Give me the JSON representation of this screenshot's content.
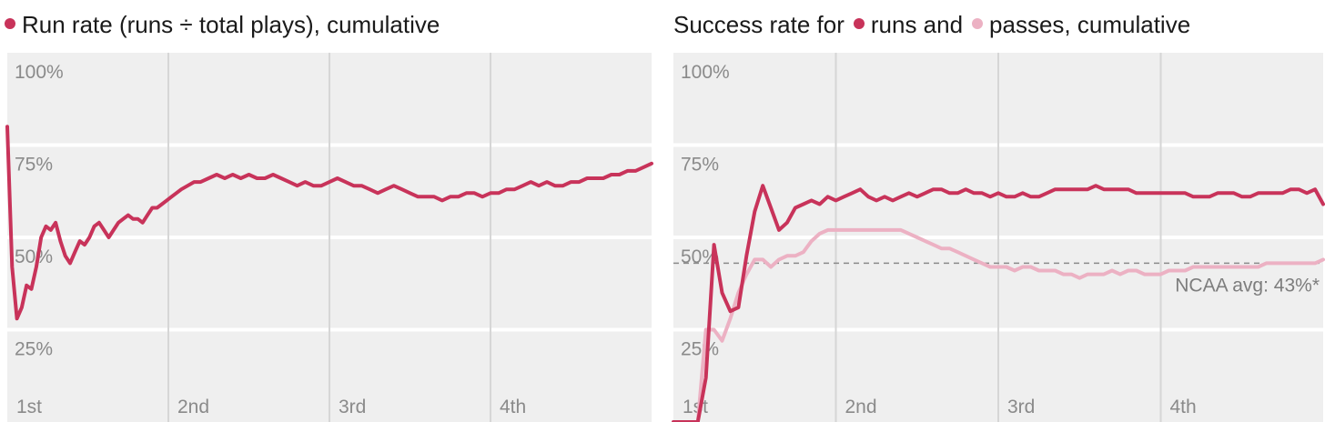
{
  "chart_data": [
    {
      "type": "line",
      "title": "Run rate (runs ÷ total plays), cumulative",
      "xlabel": "",
      "ylabel": "",
      "x_ticks": [
        "1st",
        "2nd",
        "3rd",
        "4th"
      ],
      "y_ticks": [
        "100%",
        "75%",
        "50%",
        "25%"
      ],
      "ylim": [
        0,
        100
      ],
      "xlim": [
        0,
        4
      ],
      "grid": true,
      "legend": "inline-title",
      "series": [
        {
          "name": "Run rate",
          "color": "#c8335a",
          "x": [
            0.0,
            0.03,
            0.06,
            0.09,
            0.12,
            0.15,
            0.18,
            0.21,
            0.24,
            0.27,
            0.3,
            0.33,
            0.36,
            0.39,
            0.42,
            0.45,
            0.48,
            0.51,
            0.54,
            0.57,
            0.6,
            0.63,
            0.66,
            0.69,
            0.72,
            0.75,
            0.78,
            0.81,
            0.84,
            0.87,
            0.9,
            0.93,
            0.96,
            0.99,
            1.02,
            1.05,
            1.08,
            1.12,
            1.16,
            1.2,
            1.25,
            1.3,
            1.35,
            1.4,
            1.45,
            1.5,
            1.55,
            1.6,
            1.65,
            1.7,
            1.75,
            1.8,
            1.85,
            1.9,
            1.95,
            2.0,
            2.05,
            2.1,
            2.15,
            2.2,
            2.25,
            2.3,
            2.35,
            2.4,
            2.45,
            2.5,
            2.55,
            2.6,
            2.65,
            2.7,
            2.75,
            2.8,
            2.85,
            2.9,
            2.95,
            3.0,
            3.05,
            3.1,
            3.15,
            3.2,
            3.25,
            3.3,
            3.35,
            3.4,
            3.45,
            3.5,
            3.55,
            3.6,
            3.65,
            3.7,
            3.75,
            3.8,
            3.85,
            3.9,
            3.95,
            4.0
          ],
          "y": [
            80,
            42,
            28,
            31,
            37,
            36,
            42,
            50,
            53,
            52,
            54,
            49,
            45,
            43,
            46,
            49,
            48,
            50,
            53,
            54,
            52,
            50,
            52,
            54,
            55,
            56,
            55,
            55,
            54,
            56,
            58,
            58,
            59,
            60,
            61,
            62,
            63,
            64,
            65,
            65,
            66,
            67,
            66,
            67,
            66,
            67,
            66,
            66,
            67,
            66,
            65,
            64,
            65,
            64,
            64,
            65,
            66,
            65,
            64,
            64,
            63,
            62,
            63,
            64,
            63,
            62,
            61,
            61,
            61,
            60,
            61,
            61,
            62,
            62,
            61,
            62,
            62,
            63,
            63,
            64,
            65,
            64,
            65,
            64,
            64,
            65,
            65,
            66,
            66,
            66,
            67,
            67,
            68,
            68,
            69,
            70
          ]
        }
      ]
    },
    {
      "type": "line",
      "title": "Success rate for ● runs and ● passes, cumulative",
      "title_parts": [
        "Success rate for",
        "runs and",
        "passes, cumulative"
      ],
      "xlabel": "",
      "ylabel": "",
      "x_ticks": [
        "1st",
        "2nd",
        "3rd",
        "4th"
      ],
      "y_ticks": [
        "100%",
        "75%",
        "50%",
        "25%"
      ],
      "ylim": [
        0,
        100
      ],
      "xlim": [
        0,
        4
      ],
      "grid": true,
      "legend": "inline-title",
      "annotations": [
        "NCAA avg: 43%*"
      ],
      "reference_line": 43,
      "series": [
        {
          "name": "runs",
          "color": "#c8335a",
          "x": [
            0.0,
            0.15,
            0.2,
            0.25,
            0.3,
            0.35,
            0.4,
            0.45,
            0.5,
            0.55,
            0.6,
            0.65,
            0.7,
            0.75,
            0.8,
            0.85,
            0.9,
            0.95,
            1.0,
            1.05,
            1.1,
            1.15,
            1.2,
            1.25,
            1.3,
            1.35,
            1.4,
            1.45,
            1.5,
            1.55,
            1.6,
            1.65,
            1.7,
            1.75,
            1.8,
            1.85,
            1.9,
            1.95,
            2.0,
            2.05,
            2.1,
            2.15,
            2.2,
            2.25,
            2.3,
            2.35,
            2.4,
            2.45,
            2.5,
            2.55,
            2.6,
            2.65,
            2.7,
            2.75,
            2.8,
            2.85,
            2.9,
            2.95,
            3.0,
            3.05,
            3.1,
            3.15,
            3.2,
            3.25,
            3.3,
            3.35,
            3.4,
            3.45,
            3.5,
            3.55,
            3.6,
            3.65,
            3.7,
            3.75,
            3.8,
            3.85,
            3.9,
            3.95,
            4.0
          ],
          "y": [
            0,
            0,
            12,
            48,
            35,
            30,
            31,
            45,
            57,
            64,
            58,
            52,
            54,
            58,
            59,
            60,
            59,
            61,
            60,
            61,
            62,
            63,
            61,
            60,
            61,
            60,
            61,
            62,
            61,
            62,
            63,
            63,
            62,
            62,
            63,
            62,
            62,
            61,
            62,
            61,
            61,
            62,
            61,
            61,
            62,
            63,
            63,
            63,
            63,
            63,
            64,
            63,
            63,
            63,
            63,
            62,
            62,
            62,
            62,
            62,
            62,
            62,
            61,
            61,
            61,
            62,
            62,
            62,
            61,
            61,
            62,
            62,
            62,
            62,
            63,
            63,
            62,
            63,
            59
          ]
        },
        {
          "name": "passes",
          "color": "#ecb1c3",
          "x": [
            0.0,
            0.15,
            0.2,
            0.25,
            0.3,
            0.35,
            0.4,
            0.45,
            0.5,
            0.55,
            0.6,
            0.65,
            0.7,
            0.75,
            0.8,
            0.85,
            0.9,
            0.95,
            1.0,
            1.05,
            1.1,
            1.15,
            1.2,
            1.25,
            1.3,
            1.35,
            1.4,
            1.45,
            1.5,
            1.55,
            1.6,
            1.65,
            1.7,
            1.75,
            1.8,
            1.85,
            1.9,
            1.95,
            2.0,
            2.05,
            2.1,
            2.15,
            2.2,
            2.25,
            2.3,
            2.35,
            2.4,
            2.45,
            2.5,
            2.55,
            2.6,
            2.65,
            2.7,
            2.75,
            2.8,
            2.85,
            2.9,
            2.95,
            3.0,
            3.05,
            3.1,
            3.15,
            3.2,
            3.25,
            3.3,
            3.35,
            3.4,
            3.45,
            3.5,
            3.55,
            3.6,
            3.65,
            3.7,
            3.75,
            3.8,
            3.85,
            3.9,
            3.95,
            4.0
          ],
          "y": [
            0,
            0,
            25,
            25,
            22,
            28,
            35,
            40,
            44,
            44,
            42,
            44,
            45,
            45,
            46,
            49,
            51,
            52,
            52,
            52,
            52,
            52,
            52,
            52,
            52,
            52,
            52,
            51,
            50,
            49,
            48,
            47,
            47,
            46,
            45,
            44,
            43,
            42,
            42,
            42,
            41,
            42,
            42,
            41,
            41,
            41,
            40,
            40,
            39,
            40,
            40,
            40,
            41,
            40,
            41,
            41,
            40,
            40,
            40,
            41,
            41,
            41,
            42,
            42,
            42,
            42,
            42,
            42,
            42,
            42,
            42,
            43,
            43,
            43,
            43,
            43,
            43,
            43,
            44
          ]
        }
      ]
    }
  ]
}
